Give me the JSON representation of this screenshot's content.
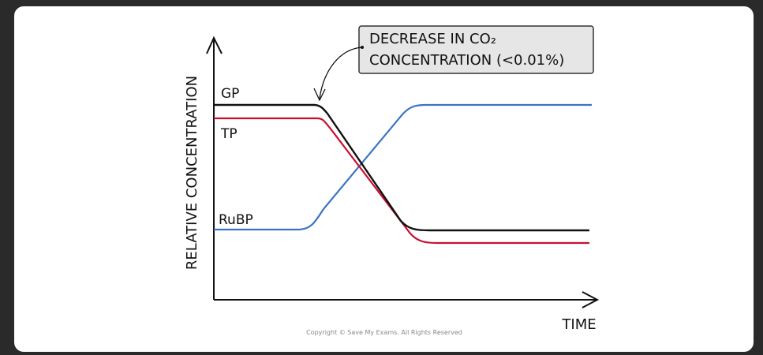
{
  "axes": {
    "y_label": "RELATIVE CONCENTRATION",
    "x_label": "TIME"
  },
  "lines": [
    {
      "label": "GP"
    },
    {
      "label": "TP"
    },
    {
      "label": "RuBP"
    }
  ],
  "annotation": {
    "line1": "DECREASE IN CO₂",
    "line2": "CONCENTRATION (<0.01%)"
  },
  "copyright": "Copyright © Save My Exams. All Rights Reserved"
}
